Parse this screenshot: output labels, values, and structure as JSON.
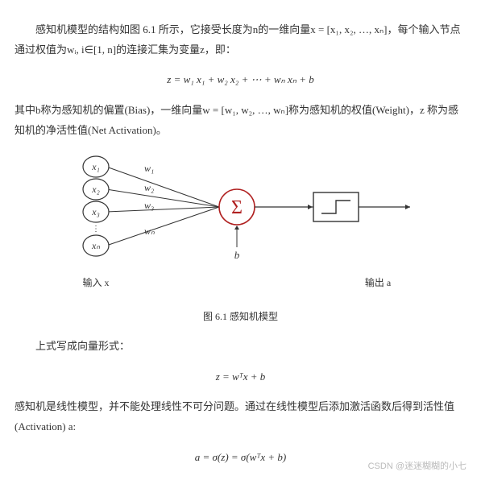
{
  "para1": "感知机模型的结构如图 6.1 所示，它接受长度为n的一维向量x = [x₁, x₂, …, xₙ]，每个输入节点通过权值为wᵢ, i∈[1, n]的连接汇集为变量z，即：",
  "eq1": "z = w₁ x₁ + w₂ x₂ + ⋯ + wₙ xₙ + b",
  "para2": "其中b称为感知机的偏置(Bias)，一维向量w = [w₁, w₂, …, wₙ]称为感知机的权值(Weight)，z 称为感知机的净活性值(Net Activation)。",
  "caption": "图 6.1 感知机模型",
  "para3": "上式写成向量形式：",
  "eq2": "z = wᵀx + b",
  "para4": "感知机是线性模型，并不能处理线性不可分问题。通过在线性模型后添加激活函数后得到活性值(Activation) a:",
  "eq3": "a = σ(z) = σ(wᵀx + b)",
  "diagram": {
    "inputs": [
      "x₁",
      "x₂",
      "x₃",
      "xₙ"
    ],
    "weights": [
      "w₁",
      "w₂",
      "w₃",
      "wₙ"
    ],
    "sum_symbol": "Σ",
    "bias_label": "b",
    "input_caption": "输入 x",
    "output_caption": "输出 a",
    "circle_stroke": "#333333",
    "text_color": "#333333",
    "sum_color": "#b02020",
    "line_color": "#333333",
    "font_family": "Cambria Math, STIX, serif"
  },
  "watermark": "CSDN @迷迷糊糊的小七"
}
